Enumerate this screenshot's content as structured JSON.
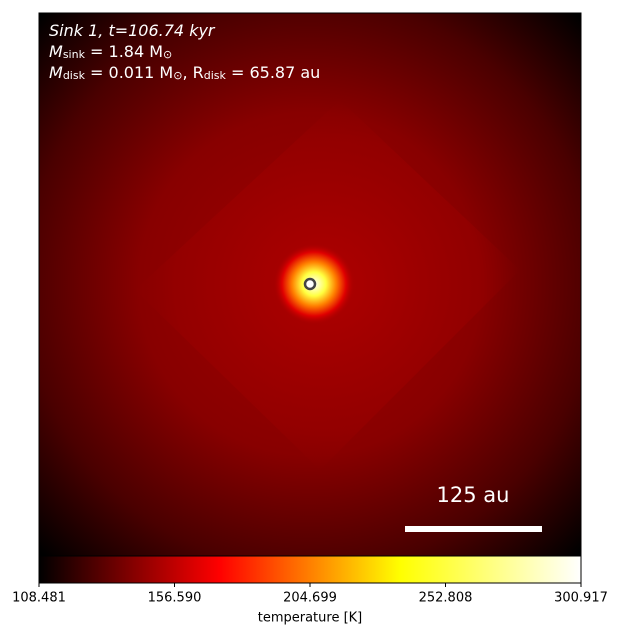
{
  "chart_data": {
    "type": "heatmap",
    "annotations": [
      [
        {
          "text": "Sink 1, t=106.74 kyr"
        }
      ],
      [
        {
          "text": "M"
        },
        {
          "sub": "sink"
        },
        {
          "text": " = 1.84 M"
        },
        {
          "sub": "⊙"
        }
      ],
      [
        {
          "text": "M"
        },
        {
          "sub": "disk"
        },
        {
          "text": " = 0.011 M"
        },
        {
          "sub": "⊙"
        },
        {
          "text": ", R"
        },
        {
          "sub": "disk"
        },
        {
          "text": " = 65.87 au"
        }
      ]
    ],
    "scale_bar_label": "125 au",
    "colormap": [
      "#000000",
      "#ff0000",
      "#ffff00",
      "#ffffff"
    ],
    "clim": [
      108.481,
      300.917
    ],
    "cticks": [
      108.481,
      {
        "value": 156.59,
        "label": "156.590"
      },
      204.699,
      252.808,
      300.917
    ],
    "colorbar_label": "temperature [K]"
  }
}
